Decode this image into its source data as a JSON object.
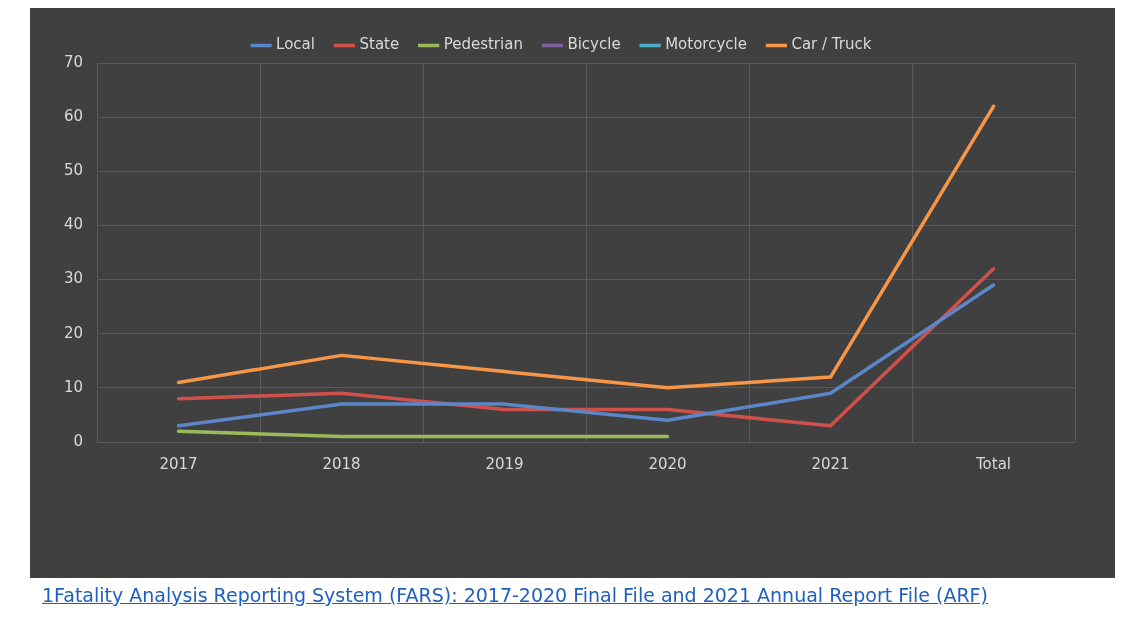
{
  "chart_data": {
    "type": "line",
    "categories": [
      "2017",
      "2018",
      "2019",
      "2020",
      "2021",
      "Total"
    ],
    "series": [
      {
        "name": "Local",
        "color": "#5b86c9",
        "values": [
          3,
          7,
          7,
          4,
          9,
          29
        ]
      },
      {
        "name": "State",
        "color": "#d0504a",
        "values": [
          8,
          9,
          6,
          6,
          3,
          32
        ]
      },
      {
        "name": "Pedestrian",
        "color": "#9bbb59",
        "values": [
          2,
          1,
          1,
          1,
          null,
          null
        ]
      },
      {
        "name": "Bicycle",
        "color": "#8064a2",
        "values": [
          null,
          null,
          null,
          null,
          null,
          null
        ]
      },
      {
        "name": "Motorcycle",
        "color": "#4bacc6",
        "values": [
          null,
          null,
          null,
          null,
          null,
          null
        ]
      },
      {
        "name": "Car / Truck",
        "color": "#f79646",
        "values": [
          11,
          16,
          13,
          10,
          12,
          62
        ]
      }
    ],
    "ylim": [
      0,
      70
    ],
    "yticks": [
      0,
      10,
      20,
      30,
      40,
      50,
      60,
      70
    ],
    "grid": true,
    "legend": "top",
    "marker": "none",
    "line_style": "solid",
    "annotations": [
      "1Fatality Analysis Reporting System (FARS): 2017-2020 Final File and 2021 Annual Report File (ARF)"
    ]
  }
}
